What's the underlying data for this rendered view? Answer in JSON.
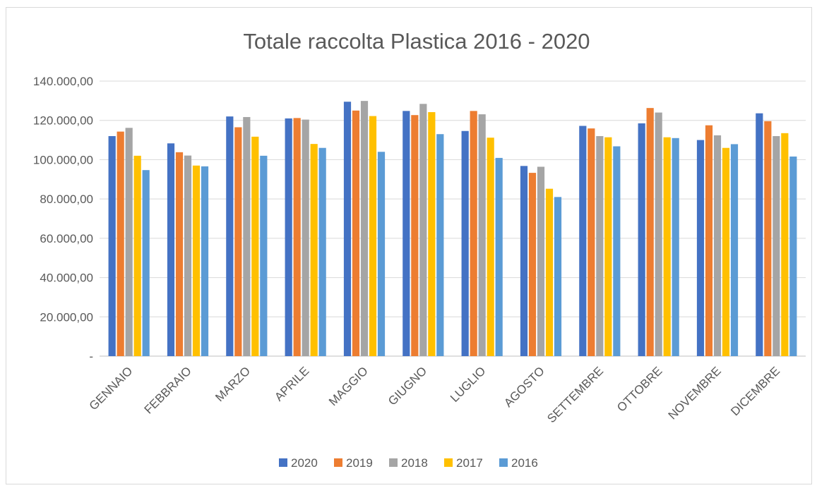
{
  "chart_data": {
    "type": "bar",
    "title": "Totale raccolta Plastica 2016 - 2020",
    "categories": [
      "GENNAIO",
      "FEBBRAIO",
      "MARZO",
      "APRILE",
      "MAGGIO",
      "GIUGNO",
      "LUGLIO",
      "AGOSTO",
      "SETTEMBRE",
      "OTTOBRE",
      "NOVEMBRE",
      "DICEMBRE"
    ],
    "series": [
      {
        "name": "2020",
        "color": "#4472c4",
        "values": [
          112000,
          108300,
          122000,
          121000,
          129500,
          124800,
          114600,
          96800,
          117200,
          118500,
          110000,
          123600
        ]
      },
      {
        "name": "2019",
        "color": "#ed7d31",
        "values": [
          114300,
          103800,
          116500,
          121200,
          125000,
          122700,
          124800,
          93300,
          115900,
          126300,
          117500,
          119600
        ]
      },
      {
        "name": "2018",
        "color": "#a5a5a5",
        "values": [
          116200,
          102100,
          121700,
          120400,
          129900,
          128400,
          123100,
          96400,
          112000,
          124000,
          112400,
          112000
        ]
      },
      {
        "name": "2017",
        "color": "#ffc000",
        "values": [
          102000,
          97000,
          111700,
          108000,
          122200,
          124200,
          111200,
          85200,
          111400,
          111400,
          106000,
          113500
        ]
      },
      {
        "name": "2016",
        "color": "#5b9bd5",
        "values": [
          94700,
          96600,
          102000,
          106000,
          104000,
          113000,
          100900,
          81000,
          106800,
          111000,
          107900,
          101600
        ]
      }
    ],
    "ylim": [
      0,
      140000
    ],
    "yticks": [
      0,
      20000,
      40000,
      60000,
      80000,
      100000,
      120000,
      140000
    ],
    "ytick_labels": [
      "-",
      "20.000,00",
      "40.000,00",
      "60.000,00",
      "80.000,00",
      "100.000,00",
      "120.000,00",
      "140.000,00"
    ],
    "grid": true,
    "legend_position": "bottom"
  }
}
